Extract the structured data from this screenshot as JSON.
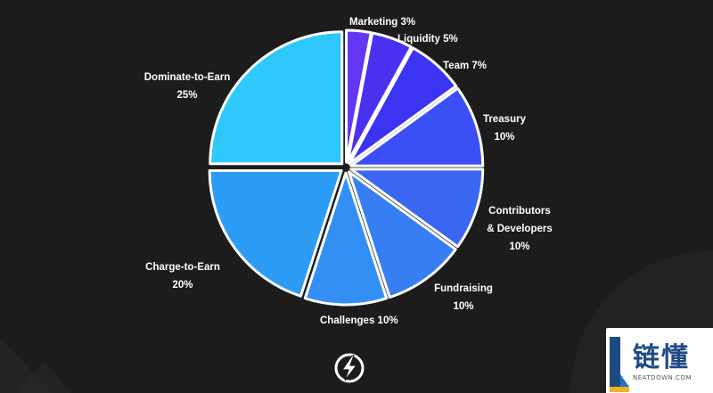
{
  "chart_data": {
    "type": "pie",
    "title": "",
    "slices": [
      {
        "name": "Marketing",
        "value": 3,
        "value_label": "3%",
        "color": "#6236f4"
      },
      {
        "name": "Liquidity",
        "value": 5,
        "value_label": "5%",
        "color": "#4a30ef"
      },
      {
        "name": "Team",
        "value": 7,
        "value_label": "7%",
        "color": "#3b34f2"
      },
      {
        "name": "Treasury",
        "value": 10,
        "value_label": "10%",
        "color": "#3a4ff4"
      },
      {
        "name": "Contributors & Developers",
        "value": 10,
        "value_label": "10%",
        "color": "#3967f2"
      },
      {
        "name": "Fundraising",
        "value": 10,
        "value_label": "10%",
        "color": "#367ef2"
      },
      {
        "name": "Challenges",
        "value": 10,
        "value_label": "10%",
        "color": "#348ff5"
      },
      {
        "name": "Charge-to-Earn",
        "value": 20,
        "value_label": "20%",
        "color": "#2d9cf5"
      },
      {
        "name": "Dominate-to-Earn",
        "value": 25,
        "value_label": "25%",
        "color": "#2ec8fb"
      }
    ],
    "exploded": true,
    "legend": "none"
  },
  "labels": {
    "marketing": "Marketing 3%",
    "liquidity": "Liquidity 5%",
    "team": "Team 7%",
    "treasury_name": "Treasury",
    "treasury_value": "10%",
    "contributors_line1": "Contributors",
    "contributors_line2": "& Developers",
    "contributors_value": "10%",
    "fundraising_name": "Fundraising",
    "fundraising_value": "10%",
    "challenges": "Challenges  10%",
    "charge_name": "Charge-to-Earn",
    "charge_value": "20%",
    "dominate_name": "Dominate-to-Earn",
    "dominate_value": "25%"
  },
  "watermark": {
    "cn": "链懂",
    "en": "NEATDOWN.COM"
  },
  "icons": {
    "logo": "lightning-bolt-icon"
  },
  "colors": {
    "background": "#1c1c1c",
    "label_text": "#ffffff"
  }
}
